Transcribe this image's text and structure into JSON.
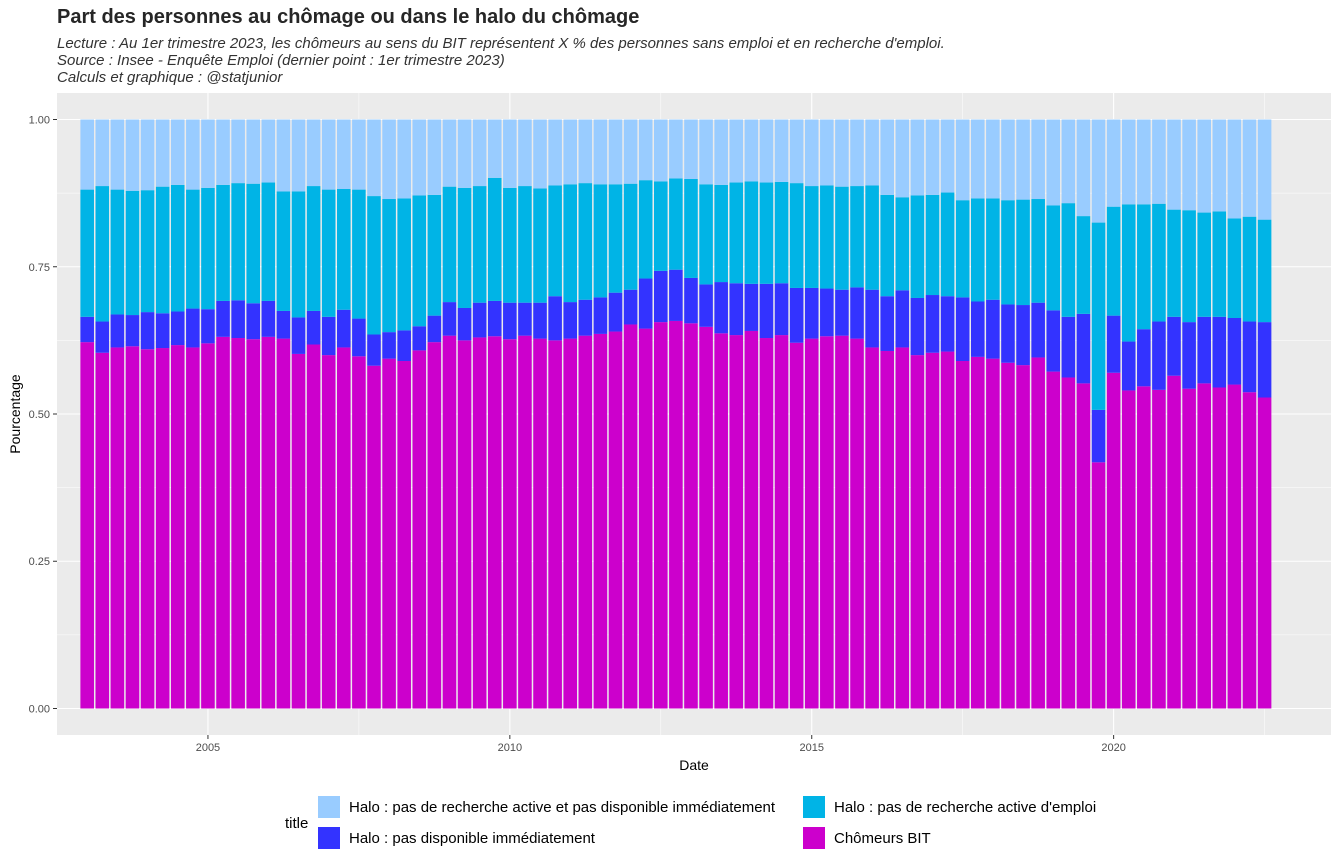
{
  "title": "Part des personnes au chômage ou dans le halo du chômage",
  "subtitle_lines": [
    "Lecture : Au 1er trimestre 2023, les chômeurs au sens du BIT représentent X % des personnes sans emploi et en recherche d'emploi.",
    "Source : Insee - Enquête Emploi (dernier point : 1er trimestre 2023)",
    "Calculs et graphique : @statjunior"
  ],
  "chart_data": {
    "type": "bar",
    "stacked": true,
    "xlabel": "Date",
    "ylabel": "Pourcentage",
    "x_start": "2003 Q1",
    "x_end": "2023 Q1",
    "xlim": [
      2002.5,
      2023.6
    ],
    "ylim": [
      -0.045,
      1.045
    ],
    "x_ticks": [
      2005,
      2010,
      2015,
      2020
    ],
    "x_tick_labels": [
      "2005",
      "2010",
      "2015",
      "2020"
    ],
    "y_ticks": [
      0,
      0.25,
      0.5,
      0.75,
      1.0
    ],
    "y_tick_labels": [
      "0.00",
      "0.25",
      "0.50",
      "0.75",
      "1.00"
    ],
    "grid": true,
    "legend_title": "title",
    "legend_position": "bottom",
    "series": [
      {
        "name": "Chômeurs BIT",
        "color": "#CC00CC",
        "values": [
          0.622,
          0.604,
          0.613,
          0.615,
          0.61,
          0.612,
          0.617,
          0.613,
          0.62,
          0.631,
          0.629,
          0.627,
          0.631,
          0.628,
          0.602,
          0.618,
          0.6,
          0.613,
          0.598,
          0.582,
          0.594,
          0.59,
          0.608,
          0.622,
          0.633,
          0.625,
          0.63,
          0.632,
          0.627,
          0.633,
          0.628,
          0.625,
          0.628,
          0.633,
          0.636,
          0.64,
          0.652,
          0.645,
          0.656,
          0.658,
          0.654,
          0.648,
          0.637,
          0.634,
          0.641,
          0.629,
          0.634,
          0.621,
          0.628,
          0.632,
          0.633,
          0.628,
          0.613,
          0.607,
          0.613,
          0.6,
          0.604,
          0.606,
          0.59,
          0.597,
          0.594,
          0.587,
          0.583,
          0.596,
          0.572,
          0.562,
          0.552,
          0.418,
          0.57,
          0.54,
          0.547,
          0.541,
          0.565,
          0.543,
          0.552,
          0.545,
          0.55,
          0.537,
          0.528
        ]
      },
      {
        "name": "Halo : pas disponible immédiatement",
        "color": "#3333FF",
        "values": [
          0.043,
          0.053,
          0.056,
          0.053,
          0.063,
          0.059,
          0.057,
          0.066,
          0.058,
          0.061,
          0.064,
          0.061,
          0.061,
          0.047,
          0.062,
          0.057,
          0.065,
          0.064,
          0.064,
          0.053,
          0.045,
          0.052,
          0.041,
          0.045,
          0.057,
          0.055,
          0.059,
          0.06,
          0.062,
          0.056,
          0.061,
          0.075,
          0.062,
          0.061,
          0.062,
          0.066,
          0.059,
          0.085,
          0.087,
          0.087,
          0.077,
          0.072,
          0.087,
          0.088,
          0.08,
          0.092,
          0.088,
          0.093,
          0.086,
          0.081,
          0.078,
          0.087,
          0.098,
          0.093,
          0.097,
          0.097,
          0.098,
          0.094,
          0.108,
          0.094,
          0.1,
          0.099,
          0.102,
          0.093,
          0.104,
          0.103,
          0.118,
          0.089,
          0.097,
          0.083,
          0.097,
          0.116,
          0.1,
          0.113,
          0.113,
          0.12,
          0.113,
          0.12,
          0.128
        ]
      },
      {
        "name": "Halo : pas de recherche active d'emploi",
        "color": "#00B4E6",
        "values": [
          0.216,
          0.23,
          0.212,
          0.211,
          0.207,
          0.215,
          0.215,
          0.202,
          0.206,
          0.197,
          0.199,
          0.203,
          0.201,
          0.203,
          0.214,
          0.212,
          0.216,
          0.205,
          0.219,
          0.235,
          0.226,
          0.224,
          0.222,
          0.205,
          0.196,
          0.204,
          0.198,
          0.209,
          0.195,
          0.198,
          0.194,
          0.188,
          0.2,
          0.198,
          0.192,
          0.184,
          0.18,
          0.167,
          0.152,
          0.155,
          0.168,
          0.17,
          0.165,
          0.171,
          0.174,
          0.172,
          0.172,
          0.178,
          0.173,
          0.175,
          0.175,
          0.172,
          0.177,
          0.172,
          0.158,
          0.174,
          0.17,
          0.176,
          0.165,
          0.175,
          0.172,
          0.177,
          0.179,
          0.176,
          0.178,
          0.193,
          0.166,
          0.318,
          0.185,
          0.233,
          0.212,
          0.2,
          0.182,
          0.19,
          0.177,
          0.179,
          0.169,
          0.178,
          0.174
        ]
      },
      {
        "name": "Halo : pas de recherche active et pas disponible immédiatement",
        "color": "#99CCFF",
        "values": [
          0.119,
          0.113,
          0.119,
          0.121,
          0.12,
          0.114,
          0.111,
          0.119,
          0.116,
          0.111,
          0.108,
          0.109,
          0.107,
          0.122,
          0.122,
          0.113,
          0.119,
          0.118,
          0.119,
          0.13,
          0.135,
          0.134,
          0.129,
          0.128,
          0.114,
          0.116,
          0.113,
          0.099,
          0.116,
          0.113,
          0.117,
          0.112,
          0.11,
          0.108,
          0.11,
          0.11,
          0.109,
          0.103,
          0.105,
          0.1,
          0.101,
          0.11,
          0.111,
          0.107,
          0.105,
          0.107,
          0.106,
          0.108,
          0.113,
          0.112,
          0.114,
          0.113,
          0.112,
          0.128,
          0.132,
          0.129,
          0.128,
          0.124,
          0.137,
          0.134,
          0.134,
          0.137,
          0.136,
          0.135,
          0.146,
          0.142,
          0.164,
          0.175,
          0.148,
          0.144,
          0.144,
          0.143,
          0.153,
          0.154,
          0.158,
          0.156,
          0.168,
          0.165,
          0.17
        ]
      }
    ]
  },
  "legend_layout": [
    {
      "series": 3,
      "col": 0,
      "row": 0
    },
    {
      "series": 2,
      "col": 1,
      "row": 0
    },
    {
      "series": 1,
      "col": 0,
      "row": 1
    },
    {
      "series": 0,
      "col": 1,
      "row": 1
    }
  ]
}
